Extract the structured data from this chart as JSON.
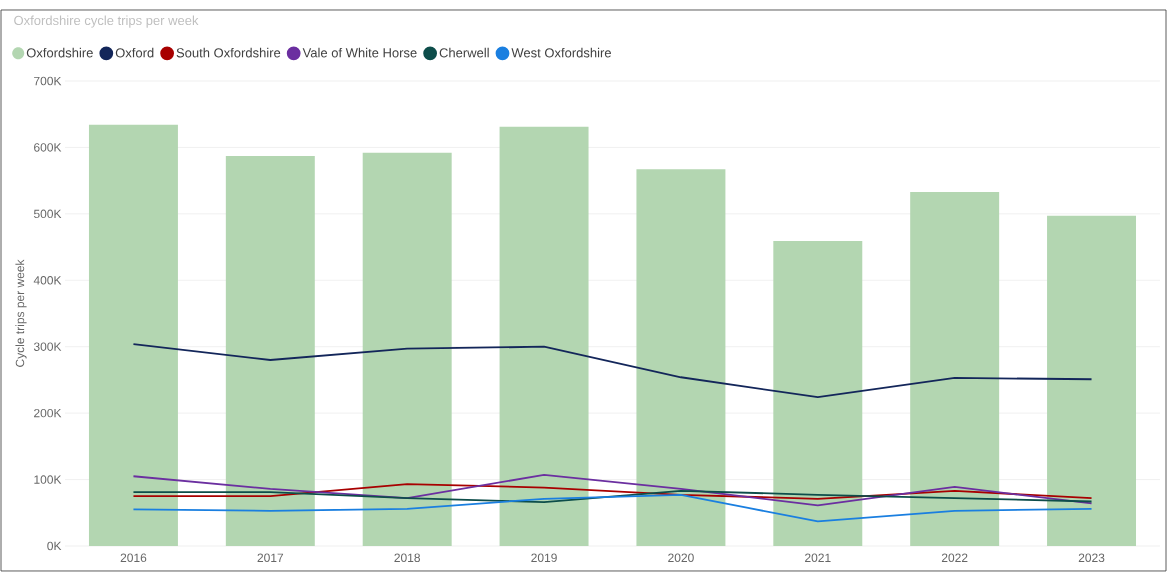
{
  "chart_data": {
    "type": "bar",
    "title": "Oxfordshire cycle trips per week",
    "ylabel": "Cycle trips per week",
    "categories": [
      "2016",
      "2017",
      "2018",
      "2019",
      "2020",
      "2021",
      "2022",
      "2023"
    ],
    "series": [
      {
        "name": "Oxfordshire",
        "color": "#b3d6b1",
        "values": [
          634000,
          587000,
          592000,
          631000,
          567000,
          459000,
          533000,
          497000
        ]
      },
      {
        "name": "Oxford",
        "type": "line",
        "color": "#13265a",
        "values": [
          304000,
          280000,
          297000,
          300000,
          254000,
          224000,
          253000,
          251000
        ]
      },
      {
        "name": "South Oxfordshire",
        "type": "line",
        "color": "#a80000",
        "values": [
          75000,
          75000,
          93000,
          88000,
          77000,
          71000,
          83000,
          72000
        ]
      },
      {
        "name": "Vale of White Horse",
        "type": "line",
        "color": "#6b2fa0",
        "values": [
          105000,
          86000,
          72000,
          107000,
          86000,
          61000,
          89000,
          64000
        ]
      },
      {
        "name": "Cherwell",
        "type": "line",
        "color": "#0d4d4a",
        "values": [
          81000,
          81000,
          72000,
          66000,
          83000,
          77000,
          72000,
          67000
        ]
      },
      {
        "name": "West Oxfordshire",
        "type": "line",
        "color": "#1a7fe0",
        "values": [
          55000,
          53000,
          56000,
          71000,
          77000,
          37000,
          53000,
          56000
        ]
      }
    ],
    "ylim": [
      0,
      700000
    ],
    "yticks": [
      {
        "value": 0,
        "label": "0K"
      },
      {
        "value": 100000,
        "label": "100K"
      },
      {
        "value": 200000,
        "label": "200K"
      },
      {
        "value": 300000,
        "label": "300K"
      },
      {
        "value": 400000,
        "label": "400K"
      },
      {
        "value": 500000,
        "label": "500K"
      },
      {
        "value": 600000,
        "label": "600K"
      },
      {
        "value": 700000,
        "label": "700K"
      }
    ],
    "grid": "y",
    "legend": "top left"
  }
}
